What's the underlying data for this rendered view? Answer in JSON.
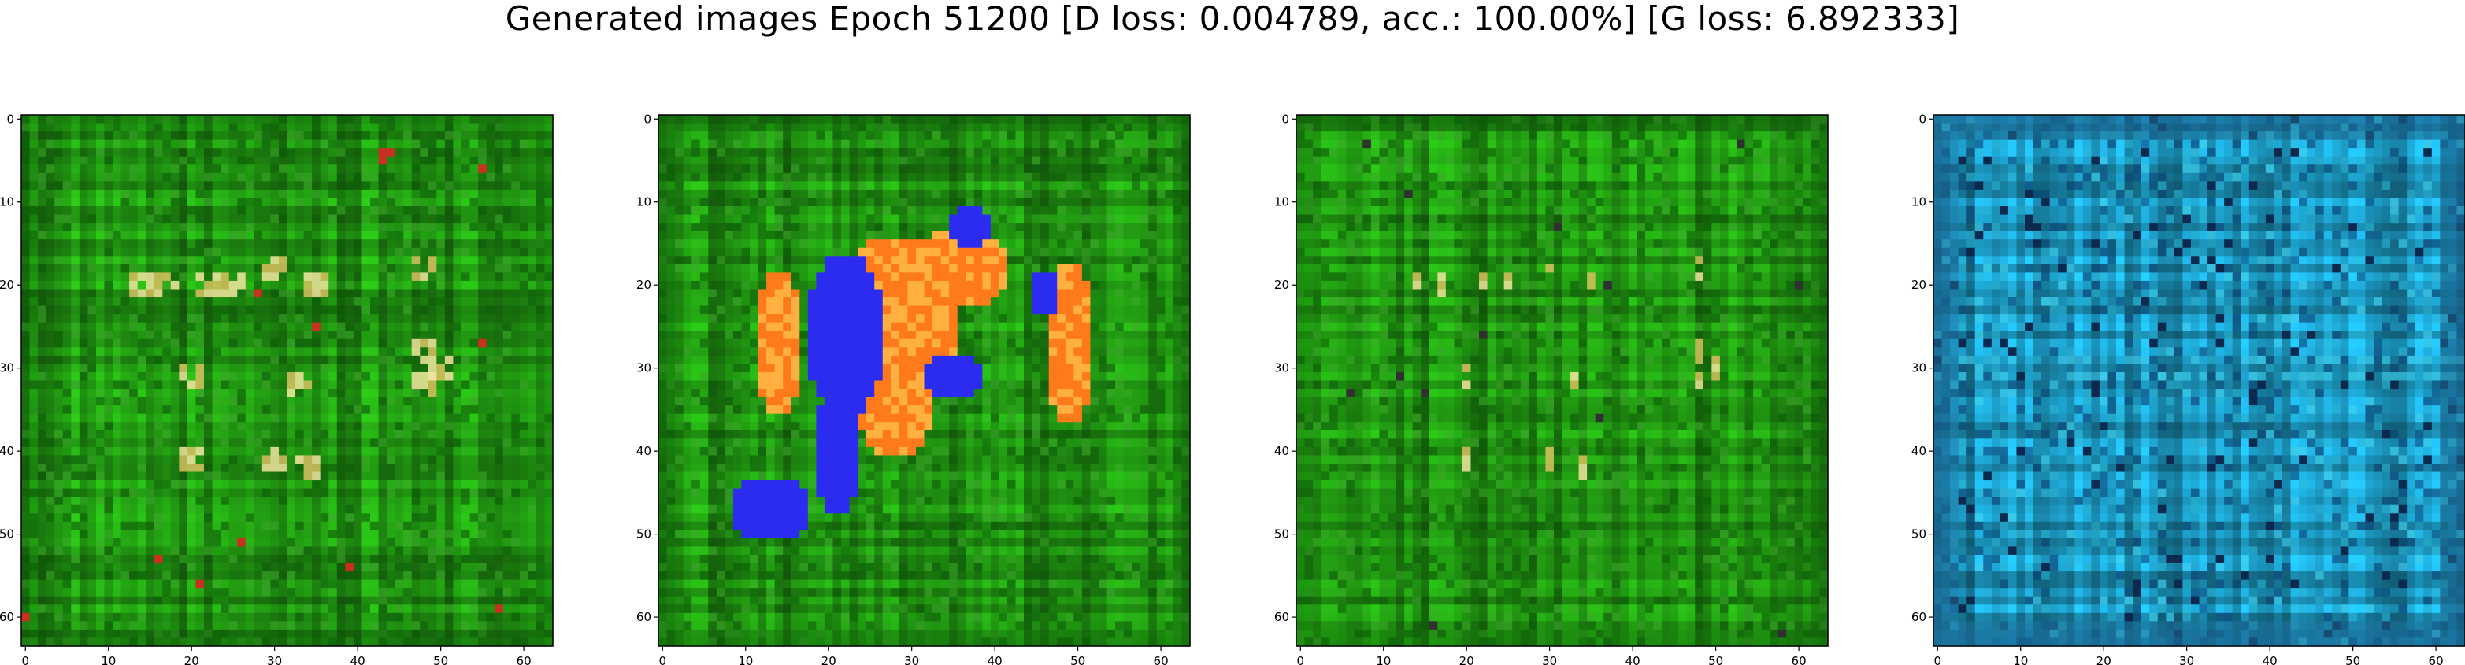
{
  "chart_data": {
    "title": "Generated images Epoch 51200 [D loss: 0.004789, acc.: 100.00%] [G loss: 6.892333]",
    "type": "heatmap",
    "panels": [
      {
        "type": "heatmap",
        "description": "green generated texture with yellow highlights",
        "base_color": "#1e8a10",
        "palette": [
          "#0d5a08",
          "#1e8a10",
          "#3aa828",
          "#f2e6a0",
          "#d8c060",
          "#c83020"
        ],
        "xlim": [
          0,
          63
        ],
        "ylim": [
          63,
          0
        ],
        "x_ticks": [
          0,
          10,
          20,
          30,
          40,
          50,
          60
        ],
        "y_ticks": [
          0,
          10,
          20,
          30,
          40,
          50,
          60
        ]
      },
      {
        "type": "heatmap",
        "description": "green background with blue and orange blobs",
        "base_color": "#1e8a10",
        "palette": [
          "#0d5a08",
          "#1e8a10",
          "#3aa828",
          "#2c2cf0",
          "#ff7a1a",
          "#ffb040"
        ],
        "xlim": [
          0,
          63
        ],
        "ylim": [
          63,
          0
        ],
        "x_ticks": [
          0,
          10,
          20,
          30,
          40,
          50,
          60
        ],
        "y_ticks": [
          0,
          10,
          20,
          30,
          40,
          50,
          60
        ]
      },
      {
        "type": "heatmap",
        "description": "green generated texture with yellow highlights",
        "base_color": "#1e8a10",
        "palette": [
          "#0d5a08",
          "#1e8a10",
          "#3aa828",
          "#f2e6a0",
          "#d8c060",
          "#303030"
        ],
        "xlim": [
          0,
          63
        ],
        "ylim": [
          63,
          0
        ],
        "x_ticks": [
          0,
          10,
          20,
          30,
          40,
          50,
          60
        ],
        "y_ticks": [
          0,
          10,
          20,
          30,
          40,
          50,
          60
        ]
      },
      {
        "type": "heatmap",
        "description": "cyan-teal texture with dark blue stripes",
        "base_color": "#1a8fb5",
        "palette": [
          "#0a3f70",
          "#1a8fb5",
          "#2ab6d6",
          "#3fd0ee",
          "#0c2a50",
          "#1d6f99"
        ],
        "xlim": [
          0,
          63
        ],
        "ylim": [
          63,
          0
        ],
        "x_ticks": [
          0,
          10,
          20,
          30,
          40,
          50,
          60
        ],
        "y_ticks": [
          0,
          10,
          20,
          30,
          40,
          50,
          60
        ]
      }
    ]
  }
}
